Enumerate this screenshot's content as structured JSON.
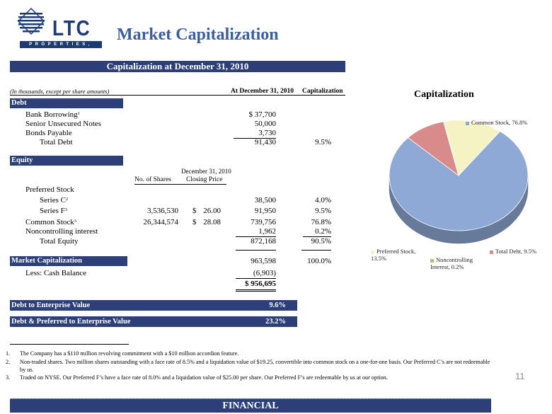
{
  "logo": {
    "text": "LTC",
    "subtext": "PROPERTIES, INC."
  },
  "title": "Market Capitalization",
  "cap_band": "Capitalization at December 31, 2010",
  "table_header": {
    "note": "(In thousands, except per share amounts)",
    "col_at": "At December 31, 2010",
    "col_cap": "Capitalization"
  },
  "debt": {
    "section": "Debt",
    "bank": {
      "label": "Bank Borrowing",
      "fn": "1",
      "value": "$   37,700"
    },
    "notes": {
      "label": "Senior Unsecured Notes",
      "value": "50,000"
    },
    "bonds": {
      "label": "Bonds Payable",
      "value": "3,730"
    },
    "total": {
      "label": "Total Debt",
      "value": "91,430",
      "pct": "9.5%"
    }
  },
  "equity": {
    "section": "Equity",
    "subhdr_date": "December 31, 2010",
    "subhdr_shares": "No. of Shares",
    "subhdr_price": "Closing Price",
    "preferred": {
      "label": "Preferred Stock"
    },
    "series_c": {
      "label": "Series C",
      "fn": "2",
      "value": "38,500",
      "pct": "4.0%"
    },
    "series_f": {
      "label": "Series F",
      "fn": "3",
      "shares": "3,536,530",
      "price_sym": "$",
      "price": "26.00",
      "value": "91,950",
      "pct": "9.5%"
    },
    "common": {
      "label": "Common Stock",
      "fn": "3",
      "shares": "26,344,574",
      "price_sym": "$",
      "price": "28.08",
      "value": "739,756",
      "pct": "76.8%"
    },
    "nci": {
      "label": "Noncontrolling interest",
      "value": "1,962",
      "pct": "0.2%"
    },
    "total": {
      "label": "Total Equity",
      "value": "872,168",
      "pct": "90.5%"
    }
  },
  "market_cap": {
    "label": "Market Capitalization",
    "value": "963,598",
    "pct": "100.0%"
  },
  "cash": {
    "label": "Less:  Cash Balance",
    "value": "(6,903)"
  },
  "ev": {
    "value": "$  956,695"
  },
  "ratios": {
    "debt_ev": {
      "label": "Debt to Enterprise Value",
      "value": "9.6%"
    },
    "debt_pref_ev": {
      "label": "Debt & Preferred to Enterprise Value",
      "value": "23.2%"
    }
  },
  "footnotes": [
    {
      "n": "1.",
      "text": "The Company has a $110 million revolving commitment with a $10 million accordion feature."
    },
    {
      "n": "2.",
      "text": "Non-traded shares.  Two million shares outstanding with a face rate of 8.5% and a liquidation value of $19.25, convertible into common stock on a one-for-one basis.  Our Preferred C’s are not redeemable by us."
    },
    {
      "n": "3.",
      "text": "Traded on NYSE.  Our Preferred F’s have a face rate of 8.0% and a liquidation value of $25.00 per share.  Our Preferred F’s are redeemable by us at our option."
    }
  ],
  "page_number": "11",
  "footer": "FINANCIAL",
  "colors": {
    "band": "#2c3f79",
    "title": "#3b5ea3"
  },
  "chart_data": {
    "type": "pie",
    "title": "Capitalization",
    "slices": [
      {
        "name": "Common Stock",
        "value": 76.8,
        "label": "Common Stock, 76.8%",
        "color": "#8fa9d6"
      },
      {
        "name": "Total Debt",
        "value": 9.5,
        "label": "Total Debt, 9.5%",
        "color": "#d98a8a"
      },
      {
        "name": "Noncontrolling Interest",
        "value": 0.2,
        "label": "Noncontrolling Interest, 0.2%",
        "color": "#a7c36b"
      },
      {
        "name": "Preferred Stock",
        "value": 13.5,
        "label": "Preferred Stock, 13.5%",
        "color": "#f5f2c4"
      }
    ]
  }
}
